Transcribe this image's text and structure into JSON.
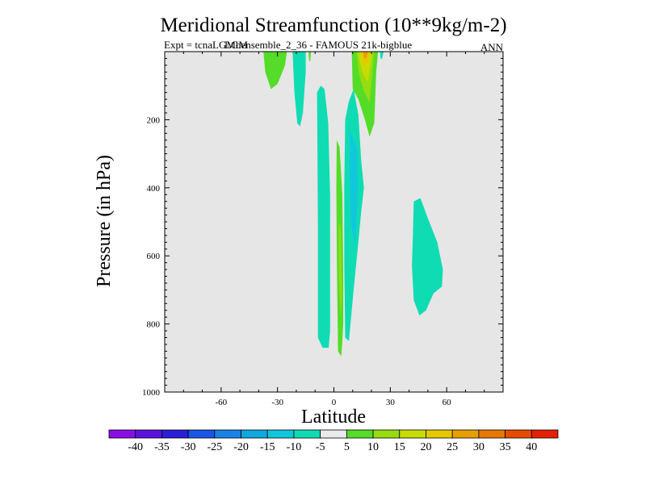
{
  "chart_data": {
    "type": "contour",
    "title": "Meridional Streamfunction (10**9kg/m-2)",
    "subtitle": "Expt = tcnaLGMbensemble_2_36 - FAMOUS 21k-bigblue",
    "overlay_label": "LGM",
    "season": "ANN",
    "xlabel": "Latitude",
    "ylabel": "Pressure (in hPa)",
    "xlim": [
      -90,
      90
    ],
    "ylim": [
      1000,
      0
    ],
    "x_ticks": [
      -60,
      -30,
      0,
      30,
      60
    ],
    "x_tick_labels": [
      "-60",
      "-30",
      "0",
      "30",
      "60"
    ],
    "y_ticks": [
      200,
      400,
      600,
      800,
      1000
    ],
    "y_tick_labels": [
      "200",
      "400",
      "600",
      "800",
      "1000"
    ],
    "background_color": "#e6e6e6",
    "colorbar": {
      "labels": [
        "-40",
        "-35",
        "-30",
        "-25",
        "-20",
        "-15",
        "-10",
        "-5",
        "5",
        "10",
        "15",
        "20",
        "25",
        "30",
        "35",
        "40"
      ],
      "colors": [
        "#8a0fe6",
        "#5a12e0",
        "#2a1fd8",
        "#1a55e6",
        "#1a82e6",
        "#10a8e0",
        "#10c8dc",
        "#10dcb4",
        "#eaeaea",
        "#55dc28",
        "#96dc10",
        "#c8dc00",
        "#e6c800",
        "#e6a000",
        "#e67800",
        "#e64b00",
        "#e61e00"
      ]
    },
    "regions": [
      {
        "name": "sh-upper-positive",
        "level": 10,
        "color": "#55dc28",
        "points": [
          [
            -37.5,
            0
          ],
          [
            -25,
            0
          ],
          [
            -26,
            40
          ],
          [
            -30,
            95
          ],
          [
            -33.5,
            110
          ],
          [
            -36.5,
            60
          ]
        ]
      },
      {
        "name": "sh-upper-negative",
        "level": -10,
        "color": "#10dcb4",
        "points": [
          [
            -22,
            0
          ],
          [
            -15,
            0
          ],
          [
            -15,
            60
          ],
          [
            -16.5,
            180
          ],
          [
            -18,
            220
          ],
          [
            -19.5,
            210
          ],
          [
            -21,
            120
          ]
        ]
      },
      {
        "name": "small-positive-sliver",
        "level": 10,
        "color": "#55dc28",
        "points": [
          [
            -13.5,
            0
          ],
          [
            -12.2,
            0
          ],
          [
            -12.6,
            30
          ],
          [
            -13.2,
            25
          ]
        ]
      },
      {
        "name": "equatorial-negative-deep",
        "level": -10,
        "color": "#10dcb4",
        "points": [
          [
            -9,
            120
          ],
          [
            -7,
            100
          ],
          [
            -5,
            110
          ],
          [
            -3,
            210
          ],
          [
            -2,
            420
          ],
          [
            -2,
            660
          ],
          [
            -2,
            820
          ],
          [
            -2.8,
            870
          ],
          [
            -6,
            870
          ],
          [
            -8.5,
            840
          ],
          [
            -8.5,
            500
          ],
          [
            -8.8,
            250
          ]
        ]
      },
      {
        "name": "equatorial-positive-sliver",
        "level": 10,
        "color": "#55dc28",
        "points": [
          [
            1.5,
            260
          ],
          [
            3,
            280
          ],
          [
            4.5,
            420
          ],
          [
            5,
            660
          ],
          [
            5,
            800
          ],
          [
            4,
            895
          ],
          [
            2.2,
            880
          ],
          [
            1.6,
            620
          ],
          [
            1.3,
            400
          ]
        ]
      },
      {
        "name": "equatorial-positive-core",
        "level": 15,
        "color": "#96dc10",
        "points": [
          [
            2.6,
            500
          ],
          [
            3.6,
            520
          ],
          [
            4.3,
            720
          ],
          [
            3.4,
            780
          ],
          [
            2.6,
            640
          ]
        ]
      },
      {
        "name": "nh-negative-column",
        "level": -10,
        "color": "#10dcb4",
        "points": [
          [
            6,
            200
          ],
          [
            8,
            145
          ],
          [
            10.5,
            110
          ],
          [
            13,
            185
          ],
          [
            14.5,
            320
          ],
          [
            16,
            400
          ],
          [
            14.5,
            470
          ],
          [
            13,
            560
          ],
          [
            10.5,
            700
          ],
          [
            8,
            850
          ],
          [
            6,
            840
          ],
          [
            5.5,
            620
          ],
          [
            5.5,
            400
          ]
        ]
      },
      {
        "name": "nh-negative-core",
        "level": -15,
        "color": "#10c8dc",
        "points": [
          [
            8.5,
            230
          ],
          [
            11,
            265
          ],
          [
            12.5,
            290
          ],
          [
            12.8,
            410
          ],
          [
            11.5,
            570
          ],
          [
            9,
            510
          ],
          [
            8.4,
            370
          ]
        ]
      },
      {
        "name": "nh-upper-positive",
        "level": 10,
        "color": "#55dc28",
        "points": [
          [
            9.5,
            0
          ],
          [
            23.5,
            0
          ],
          [
            22.5,
            60
          ],
          [
            21.5,
            210
          ],
          [
            19,
            250
          ],
          [
            16.5,
            200
          ],
          [
            13,
            140
          ],
          [
            10,
            110
          ]
        ]
      },
      {
        "name": "nh-upper-positive-15",
        "level": 15,
        "color": "#96dc10",
        "points": [
          [
            12,
            0
          ],
          [
            21.5,
            0
          ],
          [
            20.5,
            60
          ],
          [
            19,
            150
          ],
          [
            16,
            115
          ],
          [
            13.5,
            70
          ]
        ]
      },
      {
        "name": "nh-upper-positive-20",
        "level": 20,
        "color": "#c8dc00",
        "points": [
          [
            13,
            0
          ],
          [
            20.5,
            0
          ],
          [
            19.5,
            40
          ],
          [
            18,
            90
          ],
          [
            15.5,
            65
          ],
          [
            13.8,
            30
          ]
        ]
      },
      {
        "name": "nh-upper-positive-25",
        "level": 25,
        "color": "#e6c800",
        "points": [
          [
            14.5,
            0
          ],
          [
            19,
            0
          ],
          [
            18,
            30
          ],
          [
            16,
            45
          ]
        ]
      },
      {
        "name": "nh-upper-positive-30",
        "level": 30,
        "color": "#e6a000",
        "points": [
          [
            15.5,
            0
          ],
          [
            18.2,
            0
          ],
          [
            17.4,
            18
          ],
          [
            16.2,
            22
          ]
        ]
      },
      {
        "name": "nh-upper-negative-small",
        "level": -10,
        "color": "#10dcb4",
        "points": [
          [
            24.5,
            0
          ],
          [
            26.5,
            0
          ],
          [
            25.5,
            22
          ],
          [
            24.8,
            20
          ]
        ]
      },
      {
        "name": "nh-midlat-negative",
        "level": -10,
        "color": "#10dcb4",
        "points": [
          [
            42.5,
            440
          ],
          [
            46,
            430
          ],
          [
            50,
            490
          ],
          [
            55,
            560
          ],
          [
            58,
            640
          ],
          [
            57.5,
            690
          ],
          [
            53,
            710
          ],
          [
            49,
            760
          ],
          [
            45.5,
            775
          ],
          [
            42.5,
            730
          ],
          [
            41.5,
            630
          ],
          [
            42,
            540
          ]
        ]
      }
    ]
  }
}
